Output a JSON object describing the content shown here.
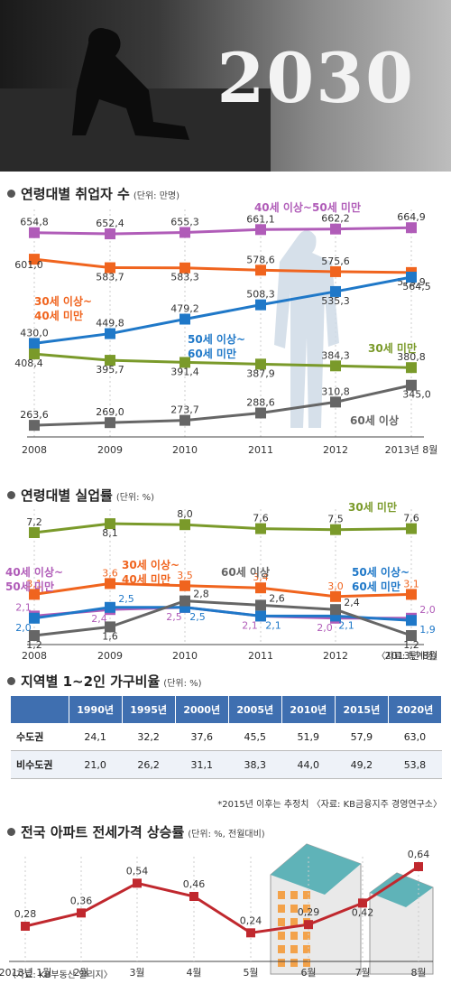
{
  "hero": {
    "title": "2030"
  },
  "sections": {
    "employment": {
      "title": "연령대별 취업자 수",
      "unit": "(단위: 만명)"
    },
    "unemployment": {
      "title": "연령대별 실업률",
      "unit": "(단위: %)",
      "source": "〈자료: 통계청〉"
    },
    "household": {
      "title": "지역별 1~2인 가구비율",
      "unit": "(단위: %)",
      "note": "*2015년 이후는 추정치 〈자료: KB금융지주 경영연구소〉"
    },
    "jeonse": {
      "title": "전국 아파트 전세가격 상승률",
      "unit": "(단위: %, 전월대비)",
      "source": "〈자료: KB부동산 알리지〉"
    }
  },
  "chart_data": [
    {
      "type": "line",
      "title": "연령대별 취업자 수",
      "x": [
        "2008",
        "2009",
        "2010",
        "2011",
        "2012",
        "2013년 8월"
      ],
      "ylim": [
        240,
        680
      ],
      "series": [
        {
          "name": "40세 이상~50세 미만",
          "color": "#b05cb8",
          "values": [
            654.8,
            652.4,
            655.3,
            661.1,
            662.2,
            664.9
          ]
        },
        {
          "name": "30세 이상~40세 미만",
          "color": "#f0641e",
          "values": [
            601.0,
            583.7,
            583.3,
            578.6,
            575.6,
            573.9
          ]
        },
        {
          "name": "50세 이상~60세 미만",
          "color": "#1f78c8",
          "values": [
            430.0,
            449.8,
            479.2,
            508.3,
            535.3,
            564.5
          ]
        },
        {
          "name": "30세 미만",
          "color": "#7a9a2a",
          "values": [
            408.4,
            395.7,
            391.4,
            387.9,
            384.3,
            380.8
          ]
        },
        {
          "name": "60세 이상",
          "color": "#666666",
          "values": [
            263.6,
            269.0,
            273.7,
            288.6,
            310.8,
            345.0
          ]
        }
      ]
    },
    {
      "type": "line",
      "title": "연령대별 실업률",
      "x": [
        "2008",
        "2009",
        "2010",
        "2011",
        "2012",
        "2013년 8월"
      ],
      "series": [
        {
          "name": "30세 미만",
          "color": "#7a9a2a",
          "values": [
            7.2,
            8.1,
            8.0,
            7.6,
            7.5,
            7.6
          ]
        },
        {
          "name": "30세 이상~40세 미만",
          "color": "#f0641e",
          "values": [
            3.1,
            3.6,
            3.5,
            3.4,
            3.0,
            3.1
          ]
        },
        {
          "name": "40세 이상~50세 미만",
          "color": "#b05cb8",
          "values": [
            2.1,
            2.4,
            2.5,
            2.1,
            2.0,
            2.0
          ]
        },
        {
          "name": "50세 이상~60세 미만",
          "color": "#1f78c8",
          "values": [
            2.0,
            2.5,
            2.5,
            2.1,
            2.1,
            1.9
          ]
        },
        {
          "name": "60세 이상",
          "color": "#666666",
          "values": [
            1.2,
            1.6,
            2.8,
            2.6,
            2.4,
            1.2
          ]
        }
      ]
    },
    {
      "type": "table",
      "title": "지역별 1~2인 가구비율",
      "columns": [
        "",
        "1990년",
        "1995년",
        "2000년",
        "2005년",
        "2010년",
        "2015년",
        "2020년"
      ],
      "rows": [
        {
          "label": "수도권",
          "values": [
            "24.1",
            "32.2",
            "37.6",
            "45.5",
            "51.9",
            "57.9",
            "63.0"
          ]
        },
        {
          "label": "비수도권",
          "values": [
            "21.0",
            "26.2",
            "31.1",
            "38.3",
            "44.0",
            "49.2",
            "53.8"
          ]
        }
      ]
    },
    {
      "type": "line",
      "title": "전국 아파트 전세가격 상승률",
      "x": [
        "2013년 1월",
        "2월",
        "3월",
        "4월",
        "5월",
        "6월",
        "7월",
        "8월"
      ],
      "ylim": [
        0.1,
        0.7
      ],
      "series": [
        {
          "color": "#c0282e",
          "values": [
            0.28,
            0.36,
            0.54,
            0.46,
            0.24,
            0.29,
            0.42,
            0.64
          ]
        }
      ]
    }
  ]
}
